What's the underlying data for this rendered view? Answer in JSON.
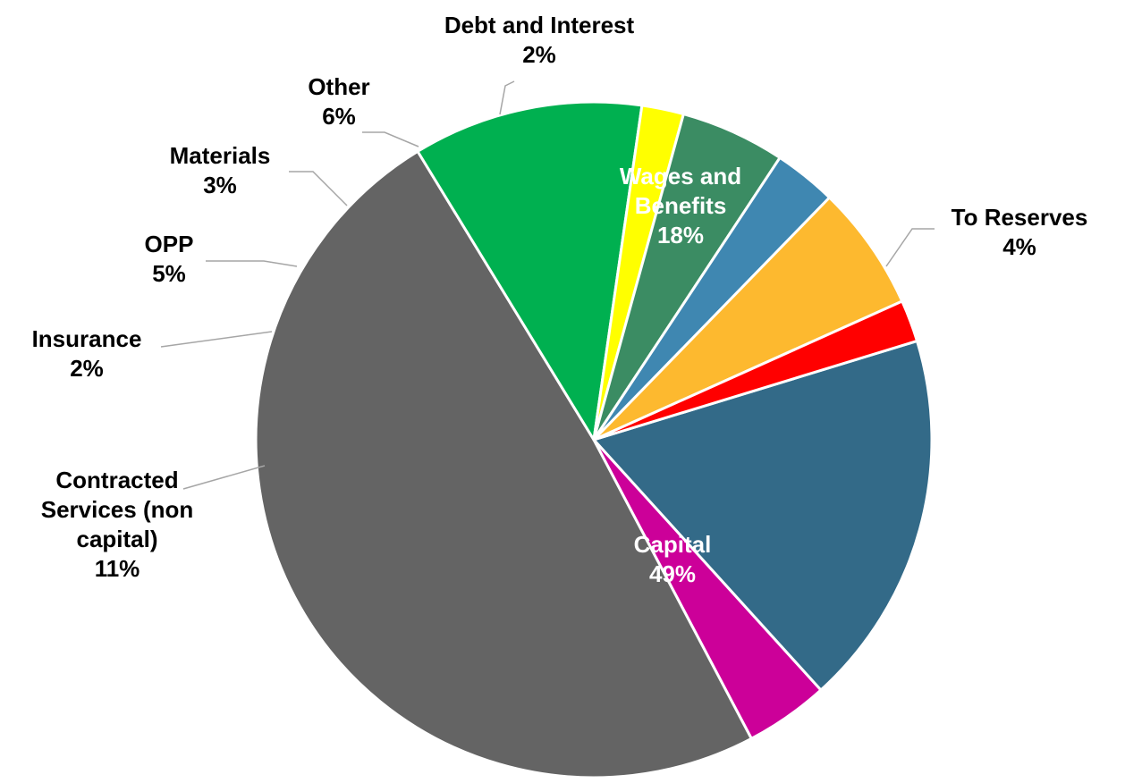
{
  "chart_data": {
    "type": "pie",
    "title": "",
    "slices": [
      {
        "label": "Wages and Benefits",
        "value": 18,
        "value_label": "18%",
        "color": "#336A88",
        "label_inside": true,
        "label_color": "#ffffff"
      },
      {
        "label": "To Reserves",
        "value": 4,
        "value_label": "4%",
        "color": "#CC0099",
        "label_inside": false,
        "label_color": "#000000"
      },
      {
        "label": "Capital",
        "value": 49,
        "value_label": "49%",
        "color": "#646464",
        "label_inside": true,
        "label_color": "#ffffff"
      },
      {
        "label": "Contracted Services (non capital)",
        "value": 11,
        "value_label": "11%",
        "color": "#00B050",
        "label_inside": false,
        "label_color": "#000000"
      },
      {
        "label": "Insurance",
        "value": 2,
        "value_label": "2%",
        "color": "#FFFF00",
        "label_inside": false,
        "label_color": "#000000"
      },
      {
        "label": "OPP",
        "value": 5,
        "value_label": "5%",
        "color": "#3B8C63",
        "label_inside": false,
        "label_color": "#000000"
      },
      {
        "label": "Materials",
        "value": 3,
        "value_label": "3%",
        "color": "#3F87B1",
        "label_inside": false,
        "label_color": "#000000"
      },
      {
        "label": "Other",
        "value": 6,
        "value_label": "6%",
        "color": "#FDB92F",
        "label_inside": false,
        "label_color": "#000000"
      },
      {
        "label": "Debt and Interest",
        "value": 2,
        "value_label": "2%",
        "color": "#FF0000",
        "label_inside": false,
        "label_color": "#000000"
      }
    ],
    "legend": "none",
    "leader_line_color": "#A6A6A6"
  }
}
